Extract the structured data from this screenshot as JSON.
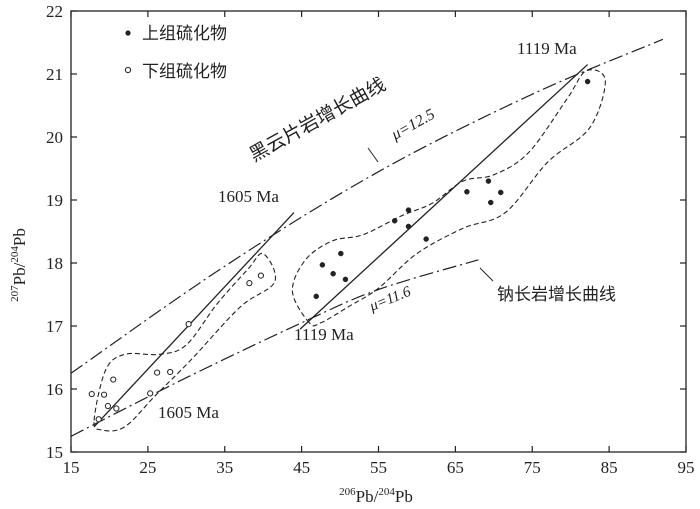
{
  "chart_data": {
    "type": "scatter",
    "xlabel_sup1": "206",
    "xlabel_main": "Pb/",
    "xlabel_sup2": "204",
    "xlabel_tail": "Pb",
    "ylabel_sup1": "207",
    "ylabel_main": "Pb/",
    "ylabel_sup2": "204",
    "ylabel_tail": "Pb",
    "xlim": [
      15,
      95
    ],
    "ylim": [
      15,
      22
    ],
    "x_ticks": [
      "15",
      "25",
      "35",
      "45",
      "55",
      "65",
      "75",
      "85",
      "95"
    ],
    "y_ticks": [
      "15",
      "16",
      "17",
      "18",
      "19",
      "20",
      "21",
      "22"
    ],
    "legend_position": "top-left",
    "series": [
      {
        "name": "上组硫化物",
        "marker": "filled-circle",
        "points": [
          [
            46.9,
            17.47
          ],
          [
            47.7,
            17.97
          ],
          [
            49.1,
            17.83
          ],
          [
            50.1,
            18.15
          ],
          [
            50.7,
            17.74
          ],
          [
            57.1,
            18.67
          ],
          [
            58.9,
            18.58
          ],
          [
            58.9,
            18.84
          ],
          [
            61.2,
            18.38
          ],
          [
            66.5,
            19.13
          ],
          [
            69.3,
            19.3
          ],
          [
            69.6,
            18.96
          ],
          [
            70.9,
            19.12
          ],
          [
            82.2,
            20.88
          ]
        ]
      },
      {
        "name": "下组硫化物",
        "marker": "open-circle",
        "points": [
          [
            17.7,
            15.92
          ],
          [
            18.6,
            15.52
          ],
          [
            19.3,
            15.91
          ],
          [
            19.8,
            15.73
          ],
          [
            20.5,
            16.15
          ],
          [
            20.9,
            15.69
          ],
          [
            25.3,
            15.93
          ],
          [
            26.2,
            16.26
          ],
          [
            27.9,
            16.27
          ],
          [
            30.3,
            17.03
          ],
          [
            38.2,
            17.68
          ],
          [
            39.7,
            17.8
          ]
        ]
      }
    ],
    "growth_curves": [
      {
        "name": "黑云片岩增长曲线",
        "mu_label": "μ=12.5",
        "points": [
          [
            15,
            16.25
          ],
          [
            35,
            17.95
          ],
          [
            55,
            19.45
          ],
          [
            75,
            20.68
          ],
          [
            92,
            21.55
          ]
        ]
      },
      {
        "name": "钠长岩增长曲线",
        "mu_label": "μ=11.6",
        "points": [
          [
            15,
            15.25
          ],
          [
            30,
            16.18
          ],
          [
            45,
            17.05
          ],
          [
            55,
            17.58
          ],
          [
            68,
            18.05
          ]
        ]
      }
    ],
    "isochrons": [
      {
        "points": [
          [
            18,
            15.4
          ],
          [
            44,
            18.8
          ]
        ]
      },
      {
        "points": [
          [
            44.8,
            16.95
          ],
          [
            82.2,
            21.15
          ]
        ]
      }
    ],
    "envelopes": [
      {
        "points": [
          [
            18,
            15.5
          ],
          [
            19.5,
            16.3
          ],
          [
            22,
            16.55
          ],
          [
            26.5,
            16.55
          ],
          [
            30,
            16.7
          ],
          [
            34,
            17.35
          ],
          [
            38,
            17.9
          ],
          [
            40,
            18.15
          ],
          [
            41.5,
            17.7
          ],
          [
            37,
            17.3
          ],
          [
            30.5,
            16.45
          ],
          [
            26,
            15.9
          ],
          [
            22,
            15.4
          ],
          [
            19,
            15.35
          ]
        ]
      },
      {
        "points": [
          [
            46,
            17.05
          ],
          [
            43.8,
            17.55
          ],
          [
            45.5,
            18.05
          ],
          [
            49,
            18.35
          ],
          [
            53,
            18.45
          ],
          [
            58,
            18.75
          ],
          [
            62,
            18.95
          ],
          [
            66,
            19.3
          ],
          [
            70,
            19.4
          ],
          [
            74.5,
            19.75
          ],
          [
            79.5,
            20.6
          ],
          [
            82,
            21.05
          ],
          [
            84.5,
            20.9
          ],
          [
            82.5,
            20.15
          ],
          [
            77,
            19.6
          ],
          [
            71.5,
            18.8
          ],
          [
            66,
            18.55
          ],
          [
            60,
            18.15
          ],
          [
            55,
            17.6
          ],
          [
            51,
            17.3
          ],
          [
            47.5,
            17.05
          ]
        ]
      }
    ],
    "annotations": {
      "age_1605_upper": "1605 Ma",
      "age_1605_lower": "1605 Ma",
      "age_1119_upper": "1119 Ma",
      "age_1119_lower": "1119 Ma"
    }
  }
}
